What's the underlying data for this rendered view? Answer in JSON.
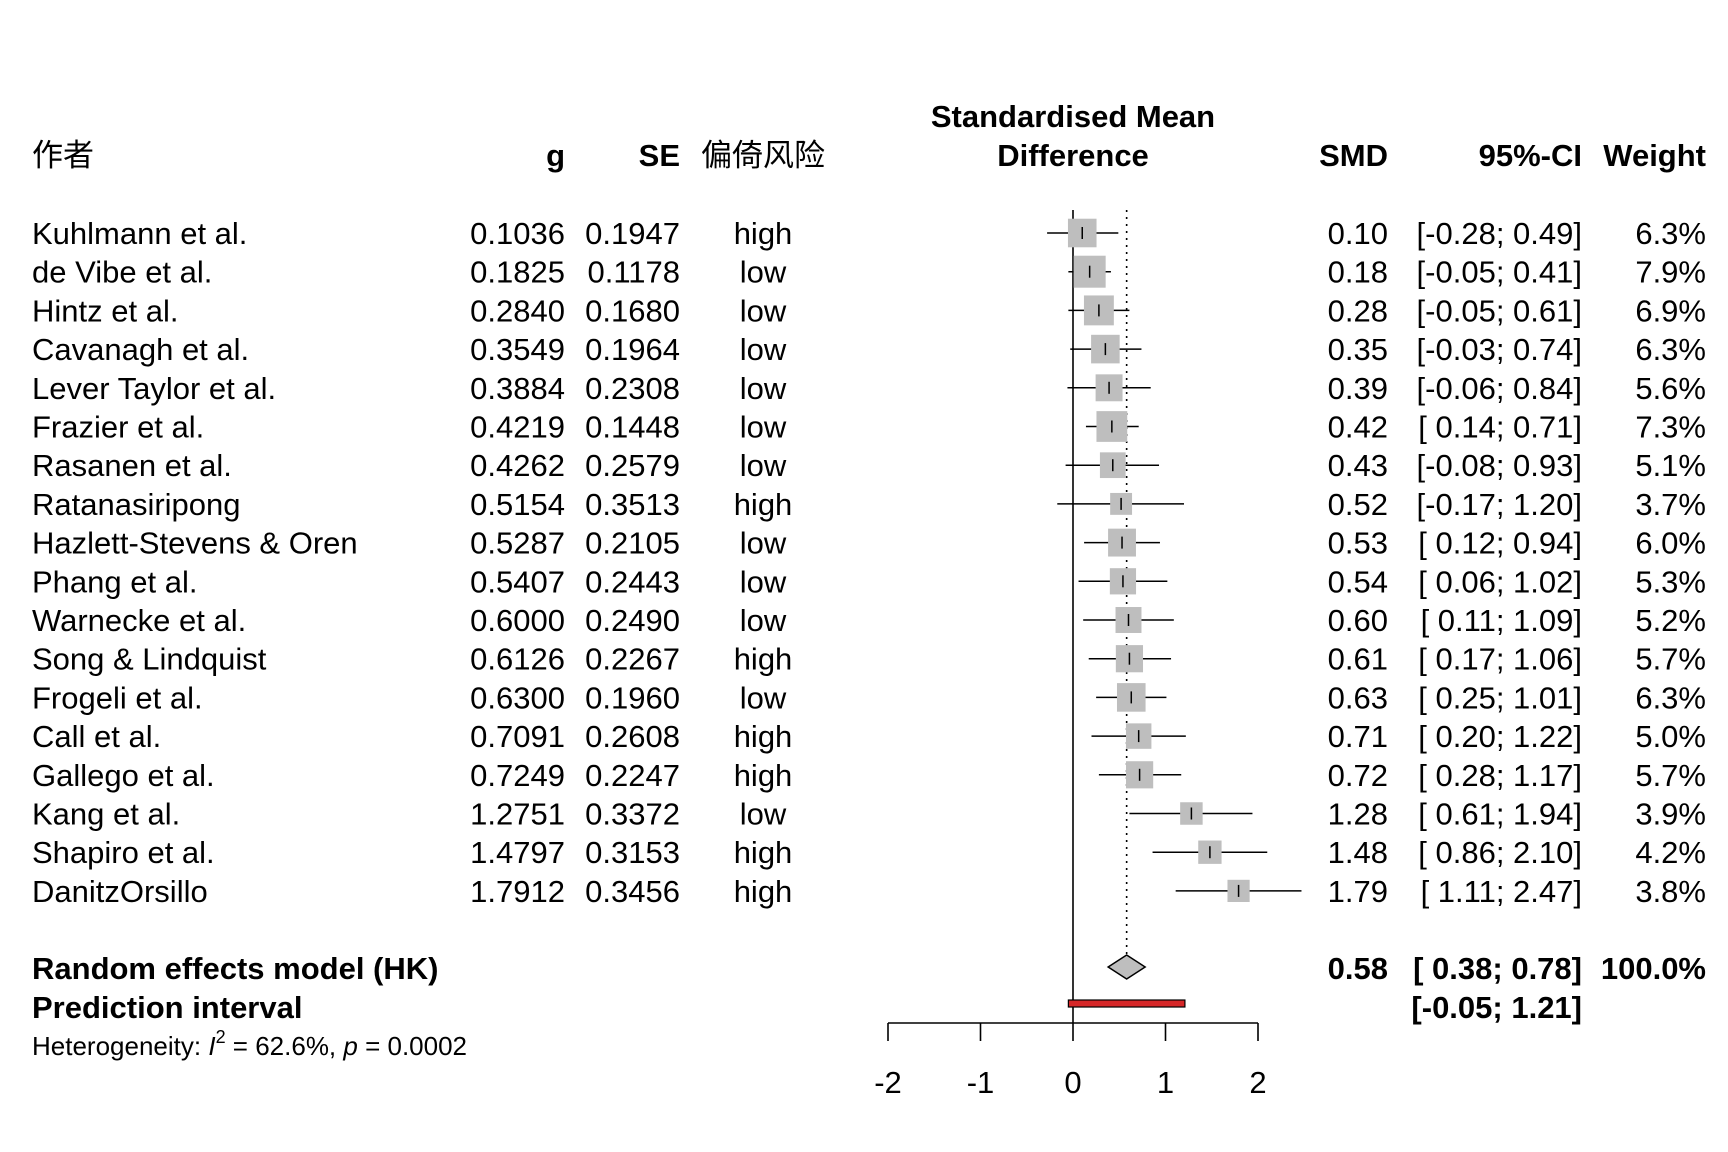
{
  "chart_data": {
    "type": "forest",
    "headers": {
      "author": "作者",
      "g": "g",
      "se": "SE",
      "risk": "偏倚风险",
      "plot_title_line1": "Standardised Mean",
      "plot_title_line2": "Difference",
      "smd": "SMD",
      "ci": "95%-CI",
      "weight": "Weight"
    },
    "studies": [
      {
        "author": "Kuhlmann et al.",
        "g": "0.1036",
        "se": "0.1947",
        "risk": "high",
        "smd": 0.1,
        "lower": -0.28,
        "upper": 0.49,
        "weight_pct": 6.3,
        "smd_text": "0.10",
        "ci_text": "[-0.28; 0.49]",
        "weight_text": "6.3%"
      },
      {
        "author": "de Vibe et al.",
        "g": "0.1825",
        "se": "0.1178",
        "risk": "low",
        "smd": 0.18,
        "lower": -0.05,
        "upper": 0.41,
        "weight_pct": 7.9,
        "smd_text": "0.18",
        "ci_text": "[-0.05; 0.41]",
        "weight_text": "7.9%"
      },
      {
        "author": "Hintz et al.",
        "g": "0.2840",
        "se": "0.1680",
        "risk": "low",
        "smd": 0.28,
        "lower": -0.05,
        "upper": 0.61,
        "weight_pct": 6.9,
        "smd_text": "0.28",
        "ci_text": "[-0.05; 0.61]",
        "weight_text": "6.9%"
      },
      {
        "author": "Cavanagh et al.",
        "g": "0.3549",
        "se": "0.1964",
        "risk": "low",
        "smd": 0.35,
        "lower": -0.03,
        "upper": 0.74,
        "weight_pct": 6.3,
        "smd_text": "0.35",
        "ci_text": "[-0.03; 0.74]",
        "weight_text": "6.3%"
      },
      {
        "author": "Lever Taylor et al.",
        "g": "0.3884",
        "se": "0.2308",
        "risk": "low",
        "smd": 0.39,
        "lower": -0.06,
        "upper": 0.84,
        "weight_pct": 5.6,
        "smd_text": "0.39",
        "ci_text": "[-0.06; 0.84]",
        "weight_text": "5.6%"
      },
      {
        "author": "Frazier et al.",
        "g": "0.4219",
        "se": "0.1448",
        "risk": "low",
        "smd": 0.42,
        "lower": 0.14,
        "upper": 0.71,
        "weight_pct": 7.3,
        "smd_text": "0.42",
        "ci_text": "[ 0.14; 0.71]",
        "weight_text": "7.3%"
      },
      {
        "author": "Rasanen et al.",
        "g": "0.4262",
        "se": "0.2579",
        "risk": "low",
        "smd": 0.43,
        "lower": -0.08,
        "upper": 0.93,
        "weight_pct": 5.1,
        "smd_text": "0.43",
        "ci_text": "[-0.08; 0.93]",
        "weight_text": "5.1%"
      },
      {
        "author": "Ratanasiripong",
        "g": "0.5154",
        "se": "0.3513",
        "risk": "high",
        "smd": 0.52,
        "lower": -0.17,
        "upper": 1.2,
        "weight_pct": 3.7,
        "smd_text": "0.52",
        "ci_text": "[-0.17; 1.20]",
        "weight_text": "3.7%"
      },
      {
        "author": "Hazlett-Stevens & Oren",
        "g": "0.5287",
        "se": "0.2105",
        "risk": "low",
        "smd": 0.53,
        "lower": 0.12,
        "upper": 0.94,
        "weight_pct": 6.0,
        "smd_text": "0.53",
        "ci_text": "[ 0.12; 0.94]",
        "weight_text": "6.0%"
      },
      {
        "author": "Phang et al.",
        "g": "0.5407",
        "se": "0.2443",
        "risk": "low",
        "smd": 0.54,
        "lower": 0.06,
        "upper": 1.02,
        "weight_pct": 5.3,
        "smd_text": "0.54",
        "ci_text": "[ 0.06; 1.02]",
        "weight_text": "5.3%"
      },
      {
        "author": "Warnecke et al.",
        "g": "0.6000",
        "se": "0.2490",
        "risk": "low",
        "smd": 0.6,
        "lower": 0.11,
        "upper": 1.09,
        "weight_pct": 5.2,
        "smd_text": "0.60",
        "ci_text": "[ 0.11; 1.09]",
        "weight_text": "5.2%"
      },
      {
        "author": "Song & Lindquist",
        "g": "0.6126",
        "se": "0.2267",
        "risk": "high",
        "smd": 0.61,
        "lower": 0.17,
        "upper": 1.06,
        "weight_pct": 5.7,
        "smd_text": "0.61",
        "ci_text": "[ 0.17; 1.06]",
        "weight_text": "5.7%"
      },
      {
        "author": "Frogeli et al.",
        "g": "0.6300",
        "se": "0.1960",
        "risk": "low",
        "smd": 0.63,
        "lower": 0.25,
        "upper": 1.01,
        "weight_pct": 6.3,
        "smd_text": "0.63",
        "ci_text": "[ 0.25; 1.01]",
        "weight_text": "6.3%"
      },
      {
        "author": "Call et al.",
        "g": "0.7091",
        "se": "0.2608",
        "risk": "high",
        "smd": 0.71,
        "lower": 0.2,
        "upper": 1.22,
        "weight_pct": 5.0,
        "smd_text": "0.71",
        "ci_text": "[ 0.20; 1.22]",
        "weight_text": "5.0%"
      },
      {
        "author": "Gallego et al.",
        "g": "0.7249",
        "se": "0.2247",
        "risk": "high",
        "smd": 0.72,
        "lower": 0.28,
        "upper": 1.17,
        "weight_pct": 5.7,
        "smd_text": "0.72",
        "ci_text": "[ 0.28; 1.17]",
        "weight_text": "5.7%"
      },
      {
        "author": "Kang et al.",
        "g": "1.2751",
        "se": "0.3372",
        "risk": "low",
        "smd": 1.28,
        "lower": 0.61,
        "upper": 1.94,
        "weight_pct": 3.9,
        "smd_text": "1.28",
        "ci_text": "[ 0.61; 1.94]",
        "weight_text": "3.9%"
      },
      {
        "author": "Shapiro et al.",
        "g": "1.4797",
        "se": "0.3153",
        "risk": "high",
        "smd": 1.48,
        "lower": 0.86,
        "upper": 2.1,
        "weight_pct": 4.2,
        "smd_text": "1.48",
        "ci_text": "[ 0.86; 2.10]",
        "weight_text": "4.2%"
      },
      {
        "author": "DanitzOrsillo",
        "g": "1.7912",
        "se": "0.3456",
        "risk": "high",
        "smd": 1.79,
        "lower": 1.11,
        "upper": 2.47,
        "weight_pct": 3.8,
        "smd_text": "1.79",
        "ci_text": "[ 1.11; 2.47]",
        "weight_text": "3.8%"
      }
    ],
    "random_effects": {
      "label": "Random effects model (HK)",
      "smd": 0.58,
      "lower": 0.38,
      "upper": 0.78,
      "smd_text": "0.58",
      "ci_text": "[ 0.38; 0.78]",
      "weight_text": "100.0%"
    },
    "prediction_interval": {
      "label": "Prediction interval",
      "lower": -0.05,
      "upper": 1.21,
      "ci_text": "[-0.05; 1.21]"
    },
    "heterogeneity": {
      "prefix": "Heterogeneity: ",
      "i_label": "I",
      "i_sup": "2",
      "i_value": " = 62.6%, ",
      "p_label": "p",
      "p_value": " = 0.0002"
    },
    "x_axis": {
      "range": [
        -2,
        2
      ],
      "ticks": [
        -2,
        -1,
        0,
        1,
        2
      ],
      "tick_labels": [
        "-2",
        "-1",
        "0",
        "1",
        "2"
      ],
      "reference_line": 0,
      "summary_line": 0.58
    },
    "colors": {
      "square": "#BEBEBE",
      "diamond": "#BEBEBE",
      "prediction_bar": "#D62728",
      "lines": "#000000"
    }
  }
}
